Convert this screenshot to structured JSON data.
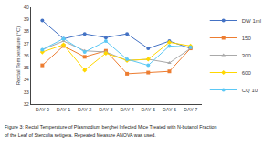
{
  "chart_data": {
    "type": "line",
    "categories": [
      "DAY 0",
      "DAY 1",
      "DAY 2",
      "DAY 3",
      "DAY 4",
      "DAY 5",
      "DAY 6",
      "DAY 7"
    ],
    "series": [
      {
        "name": "DW 1ml",
        "color": "#4472C4",
        "marker": "circle",
        "values": [
          38.9,
          37.4,
          37.8,
          37.5,
          37.8,
          36.6,
          37.2,
          36.6
        ]
      },
      {
        "name": "150",
        "color": "#ED7D31",
        "marker": "square",
        "values": [
          35.2,
          36.8,
          35.9,
          36.4,
          34.5,
          34.6,
          34.7,
          36.6
        ]
      },
      {
        "name": "300",
        "color": "#A9A9A9",
        "marker": "triangle-up",
        "values": [
          36.5,
          37.2,
          36.4,
          36.3,
          35.6,
          35.7,
          35.4,
          36.6
        ]
      },
      {
        "name": "600",
        "color": "#FFD700",
        "marker": "diamond",
        "values": [
          36.3,
          36.9,
          34.8,
          36.2,
          35.6,
          35.7,
          37.1,
          36.8
        ]
      },
      {
        "name": "CQ 10",
        "color": "#5BC8F5",
        "marker": "circle",
        "values": [
          36.5,
          37.4,
          36.3,
          37.2,
          35.7,
          35.2,
          36.8,
          36.7
        ]
      }
    ],
    "y_label": "Rectal Temperature (°C)",
    "ylim": [
      32,
      40
    ],
    "yticks": [
      32,
      33,
      34,
      35,
      36,
      37,
      38,
      39,
      40
    ],
    "grid": false,
    "legend": "right",
    "annotations": [
      "Figure 3: Rectal Temperature of Plasmodium berghei Infected Mice Treated with N-butanol Fraction",
      "of the Leaf of Sterculia setigera. Repeated Measure ANOVA was used."
    ]
  }
}
